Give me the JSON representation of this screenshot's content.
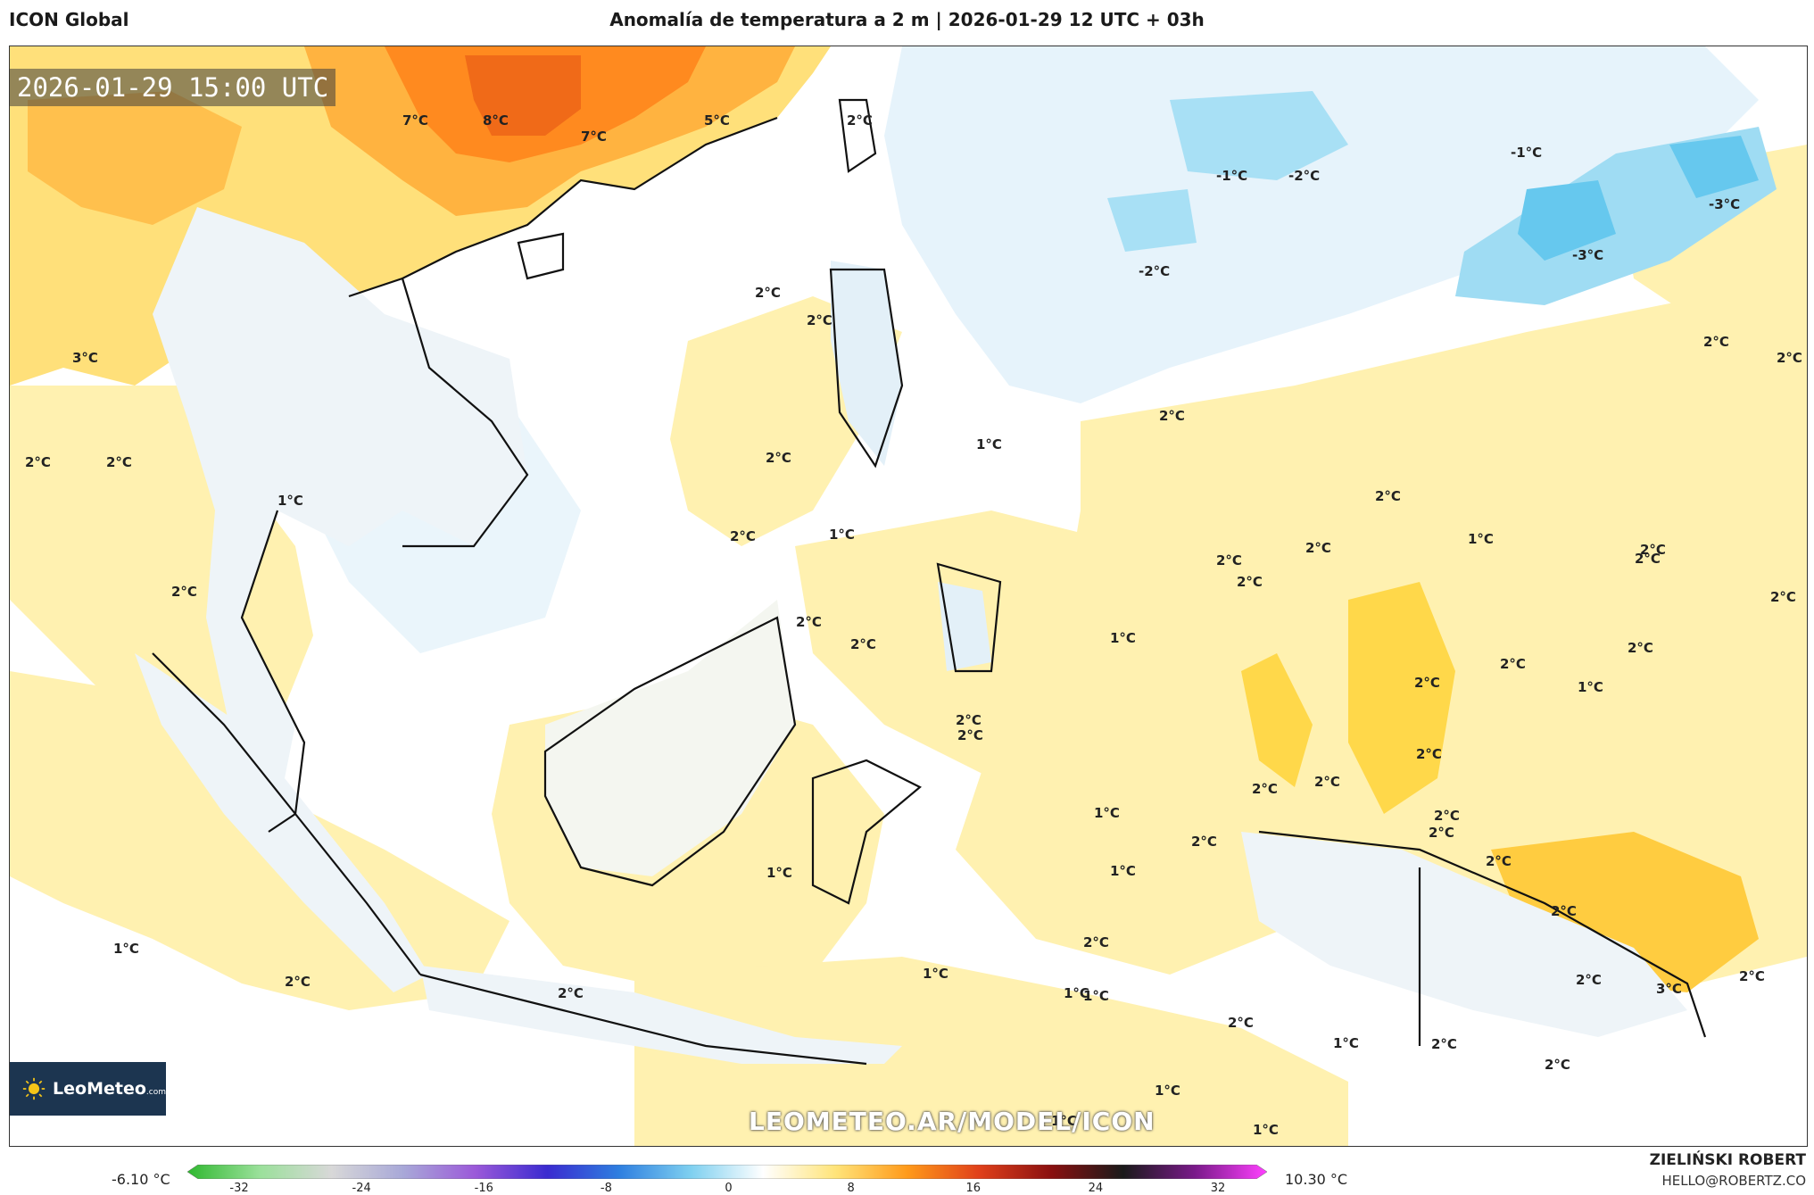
{
  "header": {
    "model": "ICON Global",
    "title": "Anomalía de temperatura a 2 m | 2026-01-29 12 UTC + 03h"
  },
  "map": {
    "valid_time": "2026-01-29 15:00 UTC",
    "watermark": "LEOMETEO.AR/MODEL/ICON",
    "logo": {
      "brand": "LeoMeteo",
      "suffix": ".com"
    },
    "labels": [
      {
        "t": "7°C"
      },
      {
        "t": "8°C"
      },
      {
        "t": "7°C"
      },
      {
        "t": "5°C"
      },
      {
        "t": "2°C"
      },
      {
        "t": "-1°C"
      },
      {
        "t": "-2°C"
      },
      {
        "t": "-1°C"
      },
      {
        "t": "-3°C"
      },
      {
        "t": "-3°C"
      },
      {
        "t": "-2°C"
      },
      {
        "t": "3°C"
      },
      {
        "t": "2°C"
      },
      {
        "t": "2°C"
      },
      {
        "t": "2°C"
      },
      {
        "t": "2°C"
      },
      {
        "t": "2°C"
      },
      {
        "t": "2°C"
      },
      {
        "t": "1°C"
      },
      {
        "t": "2°C"
      },
      {
        "t": "2°C"
      },
      {
        "t": "1°C"
      },
      {
        "t": "2°C"
      },
      {
        "t": "1°C"
      },
      {
        "t": "2°C"
      },
      {
        "t": "2°C"
      },
      {
        "t": "2°C"
      },
      {
        "t": "1°C"
      },
      {
        "t": "2°C"
      },
      {
        "t": "2°C"
      },
      {
        "t": "2°C"
      },
      {
        "t": "2°C"
      },
      {
        "t": "2°C"
      },
      {
        "t": "2°C"
      },
      {
        "t": "2°C"
      },
      {
        "t": "2°C"
      },
      {
        "t": "1°C"
      },
      {
        "t": "2°C"
      },
      {
        "t": "1°C"
      },
      {
        "t": "2°C"
      },
      {
        "t": "2°C"
      },
      {
        "t": "2°C"
      },
      {
        "t": "2°C"
      },
      {
        "t": "2°C"
      },
      {
        "t": "2°C"
      },
      {
        "t": "2°C"
      },
      {
        "t": "1°C"
      },
      {
        "t": "2°C"
      },
      {
        "t": "2°C"
      },
      {
        "t": "1°C"
      },
      {
        "t": "2°C"
      },
      {
        "t": "1°C"
      },
      {
        "t": "2°C"
      },
      {
        "t": "1°C"
      },
      {
        "t": "2°C"
      },
      {
        "t": "1°C"
      },
      {
        "t": "1°C"
      },
      {
        "t": "2°C"
      },
      {
        "t": "1°C"
      },
      {
        "t": "2°C"
      },
      {
        "t": "2°C"
      },
      {
        "t": "3°C"
      },
      {
        "t": "2°C"
      },
      {
        "t": "2°C"
      },
      {
        "t": "2°C"
      },
      {
        "t": "1°C"
      },
      {
        "t": "1°C"
      },
      {
        "t": "1°C"
      },
      {
        "t": "2°C"
      },
      {
        "t": "1°C"
      }
    ]
  },
  "colorbar": {
    "min_label": "-6.10 °C",
    "max_label": "10.30 °C",
    "ticks": [
      "-32",
      "-24",
      "-16",
      "-8",
      "0",
      "8",
      "16",
      "24",
      "32"
    ],
    "colors": [
      "#2fb82f",
      "#9ae09a",
      "#d8d8d8",
      "#a8a8d8",
      "#9b59d9",
      "#3a2bd0",
      "#2e7fe0",
      "#7fd0f0",
      "#ffffff",
      "#ffe47a",
      "#ff9a1a",
      "#e0401a",
      "#8a1010",
      "#1a1a1a",
      "#7a1a8a",
      "#ff40ff"
    ]
  },
  "footer": {
    "author": "ZIELIŃSKI ROBERT",
    "email": "HELLO@ROBERTZ.CO"
  }
}
